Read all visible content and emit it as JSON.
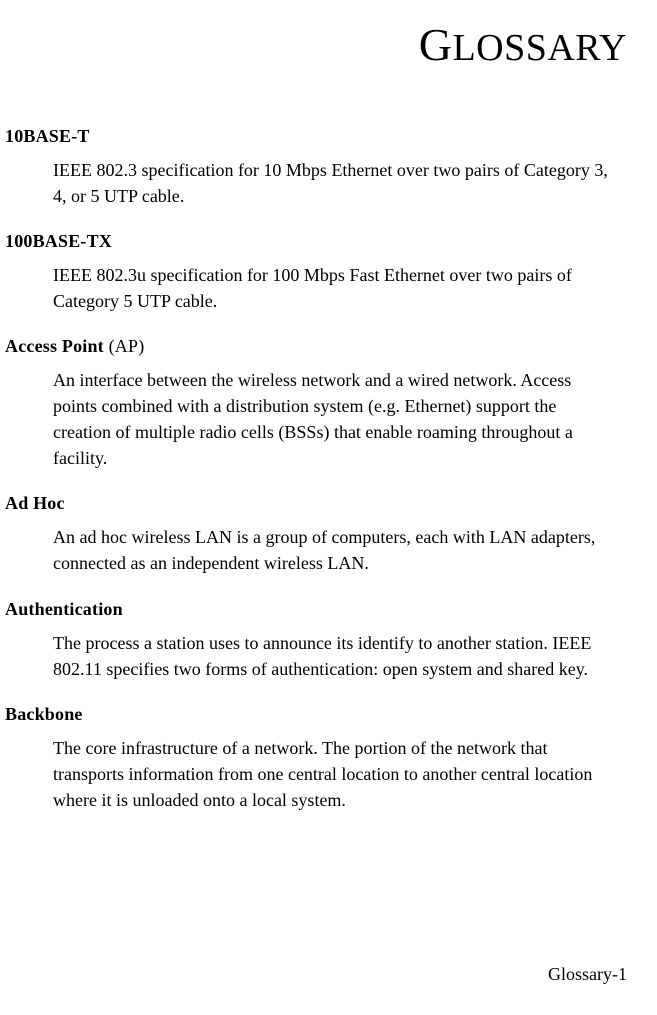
{
  "colors": {
    "background": "#ffffff",
    "text": "#000000"
  },
  "typography": {
    "body_font": "Garamond, Georgia, 'Times New Roman', serif",
    "body_size_pt": 14,
    "term_weight": "bold",
    "title_size_pt": 30,
    "line_height": 1.45
  },
  "page_title": {
    "first_letter": "G",
    "rest": "LOSSARY"
  },
  "entries": [
    {
      "term": "10BASE-T",
      "paren": "",
      "definition": "IEEE 802.3 specification for 10 Mbps Ethernet over two pairs of Category 3, 4, or 5 UTP cable."
    },
    {
      "term": "100BASE-TX",
      "paren": "",
      "definition": "IEEE 802.3u specification for 100 Mbps Fast Ethernet over two pairs of Category 5 UTP cable."
    },
    {
      "term": "Access Point",
      "paren": " (AP)",
      "definition": "An interface between the wireless network and a wired network. Access points combined with a distribution system (e.g. Ethernet) support the creation of multiple radio cells (BSSs) that enable roaming throughout a facility."
    },
    {
      "term": "Ad Hoc",
      "paren": "",
      "definition": "An ad hoc wireless LAN is a group of computers, each with LAN adapters, connected as an independent wireless LAN."
    },
    {
      "term": "Authentication",
      "paren": "",
      "definition": "The process a station uses to announce its identify to another station. IEEE 802.11 specifies two forms of authentication: open system and shared key."
    },
    {
      "term": "Backbone",
      "paren": "",
      "definition": "The core infrastructure of a network. The portion of the network that transports information from one central location to another central location where it is unloaded onto a local system."
    }
  ],
  "footer": "Glossary-1"
}
